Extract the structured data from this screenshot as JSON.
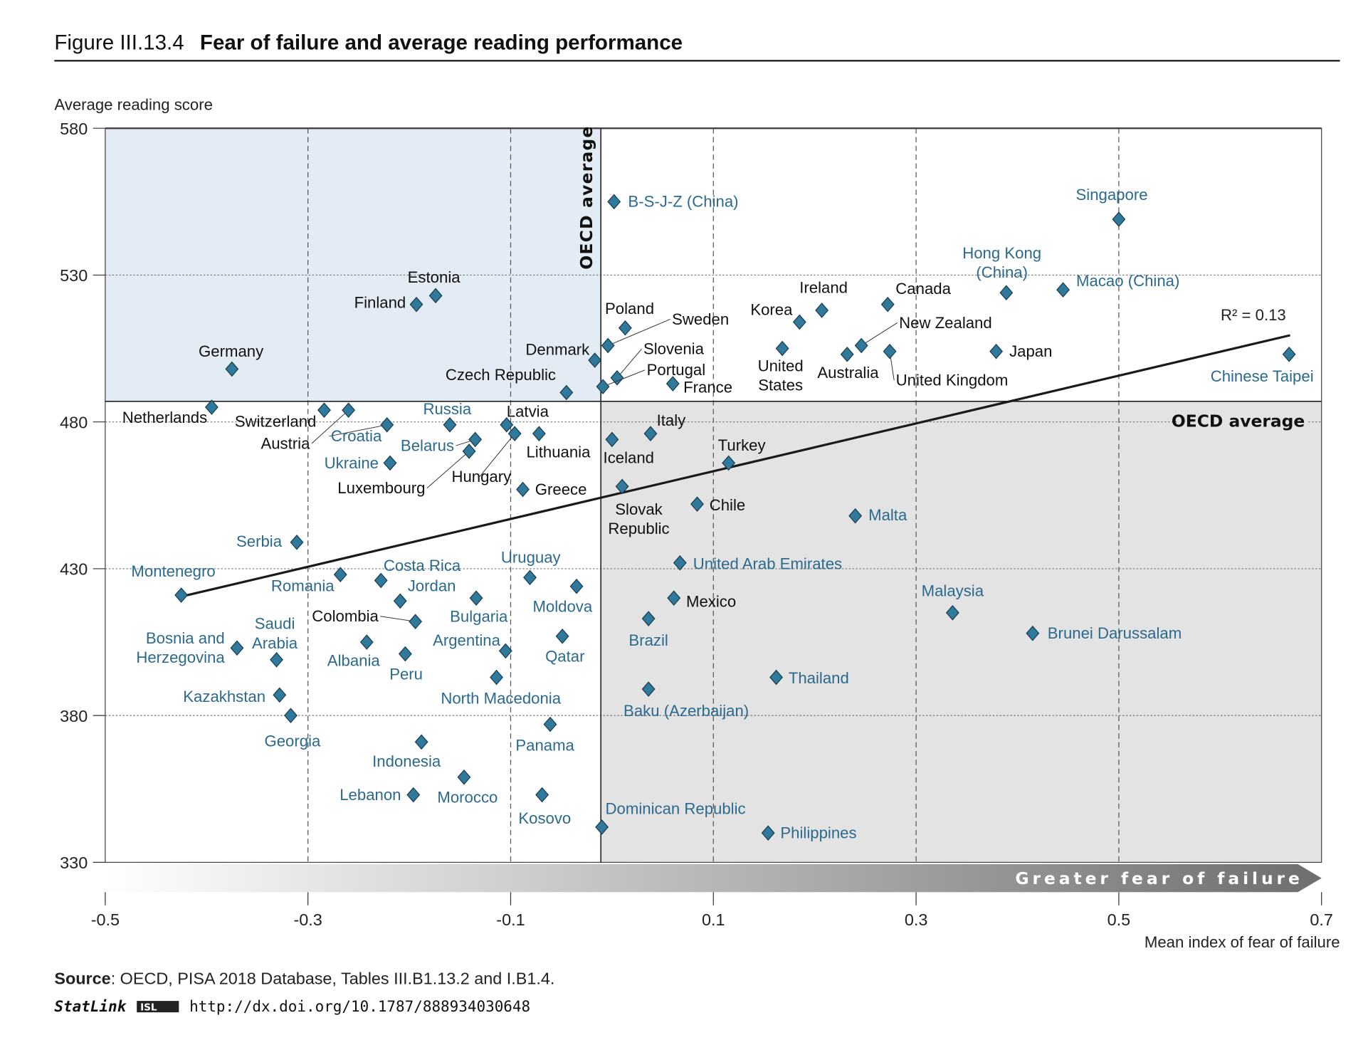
{
  "figure": {
    "number": "Figure III.13.4",
    "title": "Fear of failure and average reading performance",
    "oecd_average_label": "OECD average",
    "arrow_label": "Greater fear of failure",
    "r2_label": "R² = 0.13",
    "source_label": "Source",
    "source_text": ": OECD, PISA 2018 Database, Tables III.B1.13.2 and I.B1.4.",
    "statlink_label": "StatLink",
    "statlink_url": "http://dx.doi.org/10.1787/888934030648"
  },
  "colors": {
    "marker": "#2f7a9c",
    "partner_label": "#2b6a8e",
    "above_quadrant": "#e3ebf5",
    "below_quadrant": "#e3e3e3"
  },
  "chart_data": {
    "type": "scatter",
    "title": "Fear of failure and average reading performance",
    "xlabel": "Mean index of fear of failure",
    "ylabel": "Average reading score",
    "xlim": [
      -0.5,
      0.7
    ],
    "ylim": [
      330,
      580
    ],
    "x_ticks": [
      "-0.5",
      "-0.3",
      "-0.1",
      "0.1",
      "0.3",
      "0.5",
      "0.7"
    ],
    "x_tick_values": [
      -0.5,
      -0.3,
      -0.1,
      0.1,
      0.3,
      0.5,
      0.7
    ],
    "y_ticks": [
      "580",
      "530",
      "480",
      "430",
      "380",
      "330"
    ],
    "y_tick_values": [
      580,
      530,
      480,
      430,
      380,
      330
    ],
    "oecd_average": {
      "x": -0.011,
      "y": 487
    },
    "trendline": {
      "x": [
        -0.425,
        0.669
      ],
      "y": [
        420.5,
        509.5
      ],
      "r2": 0.13
    },
    "points": [
      {
        "name": "B-S-J-Z (China)",
        "x": 0.002,
        "y": 555,
        "oecd": false
      },
      {
        "name": "Singapore",
        "x": 0.5,
        "y": 549,
        "oecd": false
      },
      {
        "name": "Hong Kong\n(China)",
        "x": 0.389,
        "y": 524,
        "oecd": false
      },
      {
        "name": "Macao (China)",
        "x": 0.445,
        "y": 525,
        "oecd": false
      },
      {
        "name": "Ireland",
        "x": 0.207,
        "y": 518,
        "oecd": true
      },
      {
        "name": "Canada",
        "x": 0.272,
        "y": 520,
        "oecd": true
      },
      {
        "name": "Korea",
        "x": 0.185,
        "y": 514,
        "oecd": true
      },
      {
        "name": "Estonia",
        "x": -0.174,
        "y": 523,
        "oecd": true
      },
      {
        "name": "Finland",
        "x": -0.193,
        "y": 520,
        "oecd": true
      },
      {
        "name": "Poland",
        "x": 0.013,
        "y": 512,
        "oecd": true
      },
      {
        "name": "Sweden",
        "x": -0.004,
        "y": 506,
        "oecd": true
      },
      {
        "name": "New Zealand",
        "x": 0.246,
        "y": 506,
        "oecd": true
      },
      {
        "name": "United\nStates",
        "x": 0.168,
        "y": 505,
        "oecd": true
      },
      {
        "name": "Japan",
        "x": 0.379,
        "y": 504,
        "oecd": true
      },
      {
        "name": "Australia",
        "x": 0.232,
        "y": 503,
        "oecd": true
      },
      {
        "name": "United Kingdom",
        "x": 0.274,
        "y": 504,
        "oecd": true
      },
      {
        "name": "Chinese Taipei",
        "x": 0.668,
        "y": 503,
        "oecd": false
      },
      {
        "name": "Denmark",
        "x": -0.017,
        "y": 501,
        "oecd": true
      },
      {
        "name": "Germany",
        "x": -0.375,
        "y": 498,
        "oecd": true
      },
      {
        "name": "Slovenia",
        "x": 0.005,
        "y": 495,
        "oecd": true
      },
      {
        "name": "Portugal",
        "x": -0.009,
        "y": 492,
        "oecd": true
      },
      {
        "name": "France",
        "x": 0.06,
        "y": 493,
        "oecd": true
      },
      {
        "name": "Czech Republic",
        "x": -0.045,
        "y": 490,
        "oecd": true
      },
      {
        "name": "Netherlands",
        "x": -0.395,
        "y": 485,
        "oecd": true
      },
      {
        "name": "Switzerland",
        "x": -0.284,
        "y": 484,
        "oecd": true
      },
      {
        "name": "Austria",
        "x": -0.26,
        "y": 484,
        "oecd": true
      },
      {
        "name": "Croatia",
        "x": -0.222,
        "y": 479,
        "oecd": false
      },
      {
        "name": "Russia",
        "x": -0.16,
        "y": 479,
        "oecd": false
      },
      {
        "name": "Latvia",
        "x": -0.104,
        "y": 479,
        "oecd": true
      },
      {
        "name": "Lithuania",
        "x": -0.072,
        "y": 476,
        "oecd": true
      },
      {
        "name": "Hungary",
        "x": -0.096,
        "y": 476,
        "oecd": true
      },
      {
        "name": "Belarus",
        "x": -0.135,
        "y": 474,
        "oecd": false
      },
      {
        "name": "Luxembourg",
        "x": -0.141,
        "y": 470,
        "oecd": true
      },
      {
        "name": "Ukraine",
        "x": -0.219,
        "y": 466,
        "oecd": false
      },
      {
        "name": "Iceland",
        "x": 0.0,
        "y": 474,
        "oecd": true
      },
      {
        "name": "Italy",
        "x": 0.038,
        "y": 476,
        "oecd": true
      },
      {
        "name": "Turkey",
        "x": 0.115,
        "y": 466,
        "oecd": true
      },
      {
        "name": "Slovak\nRepublic",
        "x": 0.01,
        "y": 458,
        "oecd": true
      },
      {
        "name": "Greece",
        "x": -0.088,
        "y": 457,
        "oecd": true
      },
      {
        "name": "Chile",
        "x": 0.084,
        "y": 452,
        "oecd": true
      },
      {
        "name": "Malta",
        "x": 0.24,
        "y": 448,
        "oecd": false
      },
      {
        "name": "Serbia",
        "x": -0.311,
        "y": 439,
        "oecd": false
      },
      {
        "name": "United Arab Emirates",
        "x": 0.067,
        "y": 432,
        "oecd": false
      },
      {
        "name": "Romania",
        "x": -0.268,
        "y": 428,
        "oecd": false
      },
      {
        "name": "Costa Rica",
        "x": -0.228,
        "y": 426,
        "oecd": false
      },
      {
        "name": "Uruguay",
        "x": -0.081,
        "y": 427,
        "oecd": false
      },
      {
        "name": "Moldova",
        "x": -0.035,
        "y": 424,
        "oecd": false
      },
      {
        "name": "Montenegro",
        "x": -0.425,
        "y": 421,
        "oecd": false
      },
      {
        "name": "Jordan",
        "x": -0.209,
        "y": 419,
        "oecd": false
      },
      {
        "name": "Bulgaria",
        "x": -0.134,
        "y": 420,
        "oecd": false
      },
      {
        "name": "Mexico",
        "x": 0.061,
        "y": 420,
        "oecd": true
      },
      {
        "name": "Malaysia",
        "x": 0.336,
        "y": 415,
        "oecd": false
      },
      {
        "name": "Colombia",
        "x": -0.194,
        "y": 412,
        "oecd": true
      },
      {
        "name": "Brazil",
        "x": 0.036,
        "y": 413,
        "oecd": false
      },
      {
        "name": "Brunei Darussalam",
        "x": 0.415,
        "y": 408,
        "oecd": false
      },
      {
        "name": "Qatar",
        "x": -0.049,
        "y": 407,
        "oecd": false
      },
      {
        "name": "Albania",
        "x": -0.242,
        "y": 405,
        "oecd": false
      },
      {
        "name": "Bosnia and\nHerzegovina",
        "x": -0.37,
        "y": 403,
        "oecd": false
      },
      {
        "name": "Argentina",
        "x": -0.105,
        "y": 402,
        "oecd": false
      },
      {
        "name": "Peru",
        "x": -0.204,
        "y": 401,
        "oecd": false
      },
      {
        "name": "Saudi\nArabia",
        "x": -0.331,
        "y": 399,
        "oecd": false
      },
      {
        "name": "North Macedonia",
        "x": -0.114,
        "y": 393,
        "oecd": false
      },
      {
        "name": "Thailand",
        "x": 0.162,
        "y": 393,
        "oecd": false
      },
      {
        "name": "Baku (Azerbaijan)",
        "x": 0.036,
        "y": 389,
        "oecd": false
      },
      {
        "name": "Kazakhstan",
        "x": -0.328,
        "y": 387,
        "oecd": false
      },
      {
        "name": "Georgia",
        "x": -0.317,
        "y": 380,
        "oecd": false
      },
      {
        "name": "Panama",
        "x": -0.061,
        "y": 377,
        "oecd": false
      },
      {
        "name": "Indonesia",
        "x": -0.188,
        "y": 371,
        "oecd": false
      },
      {
        "name": "Morocco",
        "x": -0.146,
        "y": 359,
        "oecd": false
      },
      {
        "name": "Lebanon",
        "x": -0.196,
        "y": 353,
        "oecd": false
      },
      {
        "name": "Kosovo",
        "x": -0.069,
        "y": 353,
        "oecd": false
      },
      {
        "name": "Dominican Republic",
        "x": -0.01,
        "y": 342,
        "oecd": false
      },
      {
        "name": "Philippines",
        "x": 0.154,
        "y": 340,
        "oecd": false
      }
    ]
  }
}
